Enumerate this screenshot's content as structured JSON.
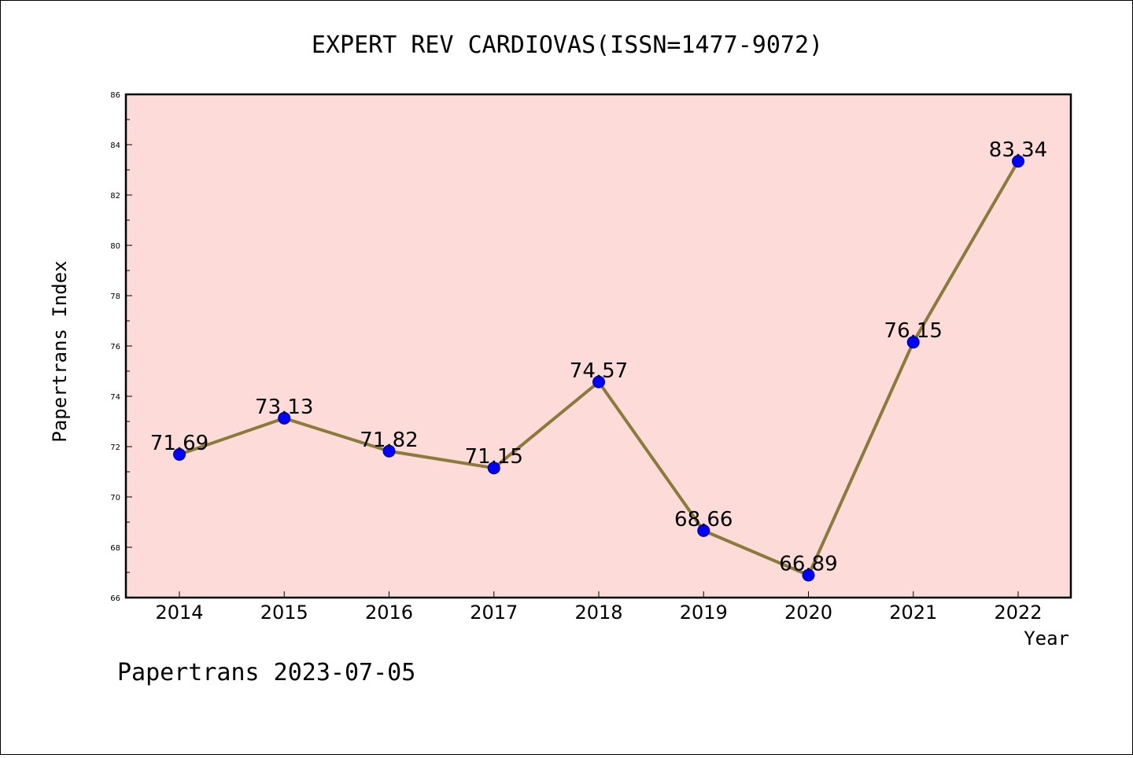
{
  "chart_data": {
    "type": "line",
    "title": "EXPERT REV CARDIOVAS(ISSN=1477-9072)",
    "xlabel": "Year",
    "ylabel": "Papertrans Index",
    "categories": [
      "2014",
      "2015",
      "2016",
      "2017",
      "2018",
      "2019",
      "2020",
      "2021",
      "2022"
    ],
    "series": [
      {
        "values": [
          71.69,
          73.13,
          71.82,
          71.15,
          74.57,
          68.66,
          66.89,
          76.15,
          83.34
        ],
        "labels": [
          "71.69",
          "73.13",
          "71.82",
          "71.15",
          "74.57",
          "68.66",
          "66.89",
          "76.15",
          "83.34"
        ]
      }
    ],
    "ylim": [
      66,
      86
    ],
    "yticks": [
      66,
      68,
      70,
      72,
      74,
      76,
      78,
      80,
      82,
      84,
      86
    ],
    "ytick_labels": [
      "66",
      "68",
      "70",
      "72",
      "74",
      "76",
      "78",
      "80",
      "82",
      "84",
      "86"
    ],
    "grid": false,
    "legend": "none",
    "colors": {
      "plot_background": "#fddbd8",
      "line": "#8b7a3a",
      "marker_fill": "#0000ff",
      "marker_edge": "#00008b"
    }
  },
  "footer": {
    "text": "Papertrans 2023-07-05"
  }
}
